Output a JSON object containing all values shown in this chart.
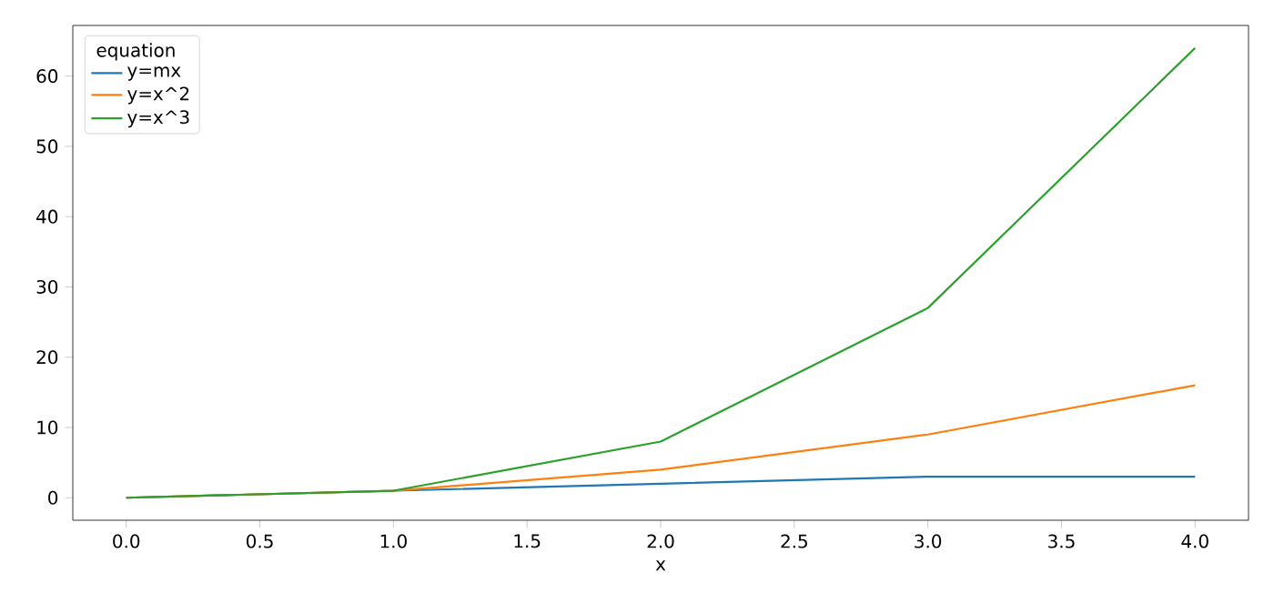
{
  "chart_data": {
    "type": "line",
    "xlabel": "x",
    "legend_title": "equation",
    "legend": "top left",
    "x": [
      0,
      1,
      2,
      3,
      4
    ],
    "series": [
      {
        "name": "y=mx",
        "color": "#1f77b4",
        "values": [
          0,
          1,
          2,
          3,
          3
        ]
      },
      {
        "name": "y=x^2",
        "color": "#ff7f0e",
        "values": [
          0,
          1,
          4,
          9,
          16
        ]
      },
      {
        "name": "y=x^3",
        "color": "#2ca02c",
        "values": [
          0,
          1,
          8,
          27,
          64
        ]
      }
    ],
    "xlim": [
      -0.2,
      4.2
    ],
    "ylim": [
      -3.2,
      67.2
    ],
    "xticks": [
      {
        "value": 0,
        "label": "0.0"
      },
      {
        "value": 0.5,
        "label": "0.5"
      },
      {
        "value": 1,
        "label": "1.0"
      },
      {
        "value": 1.5,
        "label": "1.5"
      },
      {
        "value": 2,
        "label": "2.0"
      },
      {
        "value": 2.5,
        "label": "2.5"
      },
      {
        "value": 3,
        "label": "3.0"
      },
      {
        "value": 3.5,
        "label": "3.5"
      },
      {
        "value": 4,
        "label": "4.0"
      }
    ],
    "yticks": [
      0,
      10,
      20,
      30,
      40,
      50,
      60
    ],
    "grid": false,
    "marker": "none",
    "line_style": "solid"
  }
}
